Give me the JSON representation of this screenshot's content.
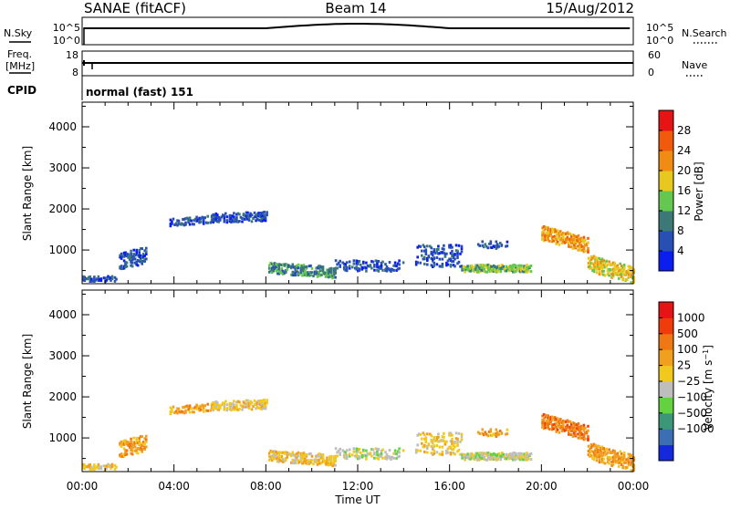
{
  "header": {
    "station": "SANAE (fitACF)",
    "beam": "Beam 14",
    "date": "15/Aug/2012"
  },
  "strip": {
    "nsky_label": "N.Sky",
    "nsky_ticks": [
      "10^5",
      "10^0"
    ],
    "nsearch_label": "N.Search",
    "nsearch_ticks": [
      "10^5",
      "10^0"
    ],
    "freq_label_1": "Freq.",
    "freq_label_2": "[MHz]",
    "freq_ticks": [
      "18",
      "8"
    ],
    "nave_label": "Nave",
    "nave_ticks": [
      "60",
      "0"
    ],
    "cpid_label": "CPID",
    "cpid_value": "normal (fast) 151"
  },
  "chart_data": [
    {
      "type": "heatmap",
      "panel": "power",
      "ylabel": "Slant Range [km]",
      "xlabel": "Time UT",
      "xticks": [
        "00:00",
        "04:00",
        "08:00",
        "12:00",
        "16:00",
        "20:00",
        "00:00"
      ],
      "yticks": [
        "1000",
        "2000",
        "3000",
        "4000"
      ],
      "ylim": [
        180,
        4600
      ],
      "colorbar_label": "Power [dB]",
      "colorbar_ticks": [
        "4",
        "8",
        "12",
        "16",
        "20",
        "24",
        "28"
      ],
      "colorbar_colors": [
        "#0a1ef0",
        "#2850b4",
        "#3c7878",
        "#64c850",
        "#e6c81e",
        "#f08c14",
        "#f05a0a",
        "#e61414"
      ]
    },
    {
      "type": "heatmap",
      "panel": "velocity",
      "ylabel": "Slant Range [km]",
      "xlabel": "Time UT",
      "xticks": [
        "00:00",
        "04:00",
        "08:00",
        "12:00",
        "16:00",
        "20:00",
        "00:00"
      ],
      "yticks": [
        "1000",
        "2000",
        "3000",
        "4000"
      ],
      "ylim": [
        180,
        4600
      ],
      "colorbar_label": "Velocity [m s^-1]",
      "colorbar_ticks": [
        "1000",
        "500",
        "100",
        "25",
        "−25",
        "−100",
        "−500",
        "−1000"
      ],
      "colorbar_colors": [
        "#1428dc",
        "#3c6eb4",
        "#3c9678",
        "#64d240",
        "#bebebe",
        "#f0c81e",
        "#f0a01e",
        "#f07814",
        "#f03c0a",
        "#e61414"
      ]
    }
  ],
  "time_axis": {
    "xlabel": "Time UT"
  }
}
